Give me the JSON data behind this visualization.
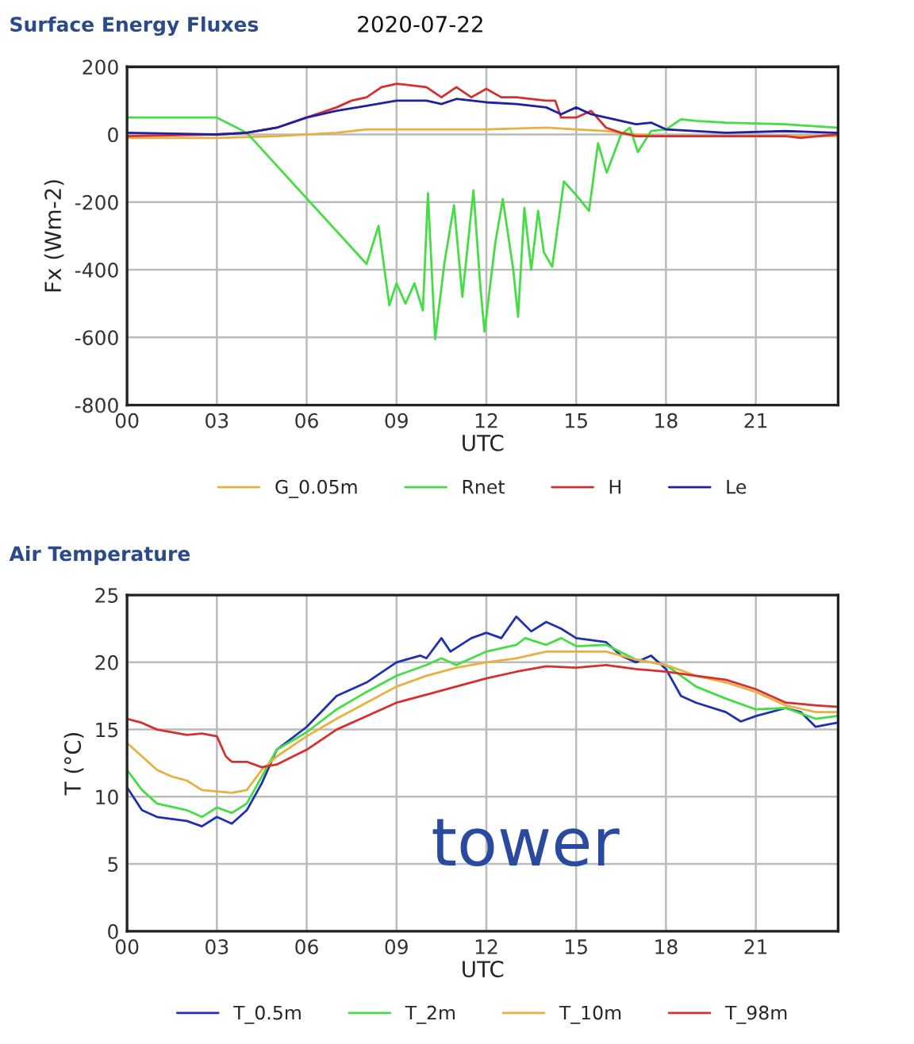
{
  "chart_data": [
    {
      "type": "line",
      "title": "Surface Energy Fluxes",
      "subtitle": "2020-07-22",
      "xlabel": "UTC",
      "ylabel": "Fx (Wm-2)",
      "xlim": [
        0,
        23.75
      ],
      "xticks": [
        {
          "value": 0,
          "label": "00"
        },
        {
          "value": 3,
          "label": "03"
        },
        {
          "value": 6,
          "label": "06"
        },
        {
          "value": 9,
          "label": "09"
        },
        {
          "value": 12,
          "label": "12"
        },
        {
          "value": 15,
          "label": "15"
        },
        {
          "value": 18,
          "label": "18"
        },
        {
          "value": 21,
          "label": "21"
        }
      ],
      "ylim": [
        -800,
        200
      ],
      "yticks": [
        -800,
        -600,
        -400,
        -200,
        0,
        200
      ],
      "grid": true,
      "legend": "bottom",
      "line_style": "solid",
      "series": [
        {
          "name": "G_0.05m",
          "color": "#e8b040",
          "x": [
            0,
            3,
            5,
            7,
            8,
            9,
            10,
            12,
            14,
            15,
            16,
            17,
            18,
            21,
            23.7
          ],
          "values": [
            -10,
            -10,
            -5,
            5,
            15,
            15,
            15,
            15,
            20,
            15,
            10,
            0,
            -5,
            -5,
            -5
          ]
        },
        {
          "name": "Rnet",
          "color": "#44dd44",
          "x": [
            0,
            3,
            4,
            8,
            8.4,
            8.76,
            9.0,
            9.3,
            9.6,
            9.88,
            10.05,
            10.29,
            10.6,
            10.92,
            11.2,
            11.57,
            11.8,
            11.94,
            12.3,
            12.55,
            12.9,
            13.06,
            13.27,
            13.5,
            13.73,
            13.92,
            14.2,
            14.59,
            15.04,
            15.43,
            15.73,
            16.02,
            16.5,
            16.8,
            17.06,
            17.5,
            18,
            18.5,
            19,
            20,
            22,
            23.7
          ],
          "values": [
            50,
            50,
            5,
            -383,
            -270,
            -505,
            -440,
            -500,
            -440,
            -520,
            -174,
            -605,
            -380,
            -209,
            -480,
            -165,
            -450,
            -583,
            -320,
            -191,
            -400,
            -539,
            -217,
            -400,
            -226,
            -348,
            -391,
            -139,
            -183,
            -226,
            -26,
            -113,
            0,
            20,
            -52,
            10,
            15,
            45,
            40,
            35,
            30,
            20
          ]
        },
        {
          "name": "H",
          "color": "#d43030",
          "x": [
            0,
            3,
            4,
            5,
            6,
            7,
            7.5,
            8,
            8.5,
            9,
            10,
            10.5,
            11,
            11.5,
            12,
            12.5,
            13,
            14,
            14.3,
            14.5,
            15,
            15.5,
            16,
            16.5,
            17,
            18,
            21,
            22,
            22.5,
            23.7
          ],
          "values": [
            -5,
            0,
            5,
            20,
            50,
            80,
            100,
            110,
            140,
            150,
            140,
            110,
            140,
            110,
            135,
            110,
            110,
            100,
            100,
            50,
            50,
            70,
            20,
            5,
            -5,
            -5,
            -5,
            -5,
            -10,
            0
          ]
        },
        {
          "name": "Le",
          "color": "#2020a0",
          "x": [
            0,
            3,
            4,
            5,
            6,
            7,
            8,
            9,
            10,
            10.5,
            11,
            12,
            13,
            14,
            14.5,
            15,
            15.5,
            16,
            17,
            17.5,
            18,
            20,
            22,
            23.7
          ],
          "values": [
            5,
            0,
            5,
            20,
            50,
            70,
            85,
            100,
            100,
            90,
            105,
            95,
            90,
            80,
            60,
            80,
            60,
            50,
            30,
            35,
            15,
            5,
            10,
            5
          ]
        }
      ]
    },
    {
      "type": "line",
      "title": "Air Temperature",
      "xlabel": "UTC",
      "ylabel": "T (°C)",
      "xlim": [
        0,
        23.75
      ],
      "xticks": [
        {
          "value": 0,
          "label": "00"
        },
        {
          "value": 3,
          "label": "03"
        },
        {
          "value": 6,
          "label": "06"
        },
        {
          "value": 9,
          "label": "09"
        },
        {
          "value": 12,
          "label": "12"
        },
        {
          "value": 15,
          "label": "15"
        },
        {
          "value": 18,
          "label": "18"
        },
        {
          "value": 21,
          "label": "21"
        }
      ],
      "ylim": [
        0,
        25
      ],
      "yticks": [
        0,
        5,
        10,
        15,
        20,
        25
      ],
      "grid": true,
      "legend": "bottom",
      "line_style": "solid",
      "annotations": [
        "tower"
      ],
      "series": [
        {
          "name": "T_0.5m",
          "color": "#2030b0",
          "x": [
            0,
            0.5,
            1,
            2,
            2.5,
            3,
            3.5,
            4,
            4.5,
            5,
            6,
            7,
            8,
            9,
            9.8,
            10,
            10.5,
            10.8,
            11.5,
            12,
            12.5,
            13,
            13.5,
            14,
            14.5,
            15,
            16,
            16.5,
            17,
            17.5,
            18,
            18.5,
            19,
            20,
            20.5,
            21,
            22,
            22.5,
            23,
            23.7
          ],
          "values": [
            10.7,
            9,
            8.5,
            8.2,
            7.8,
            8.5,
            8.0,
            9,
            11,
            13.5,
            15.2,
            17.5,
            18.5,
            20,
            20.5,
            20.3,
            21.8,
            20.8,
            21.8,
            22.2,
            21.8,
            23.4,
            22.3,
            23,
            22.5,
            21.8,
            21.5,
            20.5,
            20,
            20.5,
            19.5,
            17.5,
            17,
            16.3,
            15.6,
            16,
            16.6,
            16.3,
            15.2,
            15.5
          ]
        },
        {
          "name": "T_2m",
          "color": "#44dd44",
          "x": [
            0,
            0.5,
            1,
            2,
            2.5,
            3,
            3.5,
            4,
            4.5,
            5,
            6,
            7,
            8,
            9,
            10,
            10.5,
            11,
            12,
            13,
            13.3,
            14,
            14.5,
            15,
            16,
            17,
            18,
            19,
            20,
            21,
            22,
            23,
            23.7
          ],
          "values": [
            12,
            10.5,
            9.5,
            9,
            8.5,
            9.2,
            8.8,
            9.5,
            11.5,
            13.5,
            14.8,
            16.5,
            17.8,
            19,
            19.8,
            20.3,
            19.8,
            20.8,
            21.3,
            21.8,
            21.3,
            21.8,
            21.2,
            21.3,
            20.2,
            19.8,
            18.2,
            17.3,
            16.5,
            16.6,
            15.8,
            16
          ]
        },
        {
          "name": "T_10m",
          "color": "#e8b040",
          "x": [
            0,
            0.5,
            1,
            1.5,
            2,
            2.5,
            3,
            3.5,
            4,
            4.5,
            5,
            6,
            7,
            8,
            9,
            10,
            11,
            12,
            13,
            14,
            15,
            16,
            17,
            18,
            19,
            20,
            21,
            22,
            23,
            23.7
          ],
          "values": [
            14,
            13,
            12,
            11.5,
            11.2,
            10.5,
            10.4,
            10.3,
            10.5,
            12,
            13,
            14.5,
            15.8,
            17,
            18.2,
            19,
            19.6,
            20,
            20.3,
            20.8,
            20.8,
            20.8,
            20.2,
            19.8,
            19,
            18.5,
            17.8,
            16.8,
            16.3,
            16.3
          ]
        },
        {
          "name": "T_98m",
          "color": "#d43030",
          "x": [
            0,
            0.5,
            1,
            2,
            2.5,
            3,
            3.3,
            3.5,
            4,
            4.5,
            5,
            6,
            7,
            8,
            9,
            10,
            11,
            12,
            13,
            14,
            15,
            16,
            17,
            18,
            19,
            20,
            21,
            22,
            23,
            23.7
          ],
          "values": [
            15.8,
            15.5,
            15,
            14.6,
            14.7,
            14.5,
            13,
            12.6,
            12.6,
            12.2,
            12.4,
            13.5,
            15,
            16,
            17,
            17.6,
            18.2,
            18.8,
            19.3,
            19.7,
            19.6,
            19.8,
            19.5,
            19.3,
            19,
            18.7,
            18,
            17,
            16.8,
            16.7
          ]
        }
      ]
    }
  ]
}
